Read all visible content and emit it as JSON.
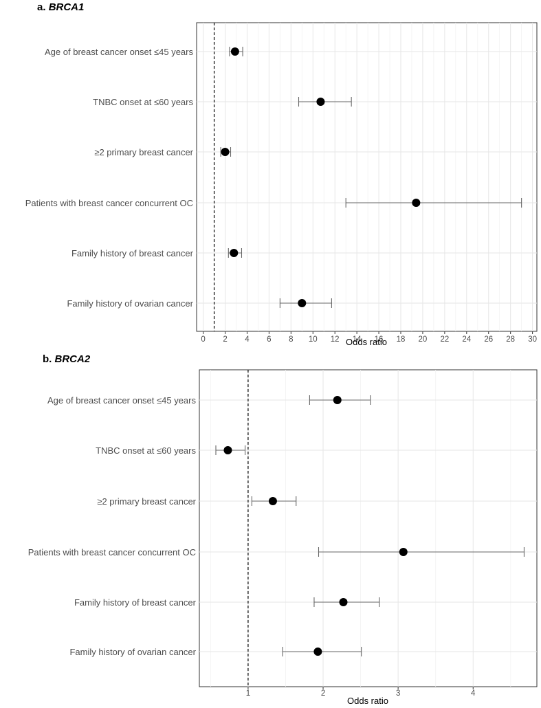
{
  "chart_data": [
    {
      "type": "forest",
      "panel_label": "a.",
      "title": "BRCA1",
      "xlabel": "Odds ratio",
      "xlim": [
        -0.6,
        30.4
      ],
      "xticks": [
        0,
        2,
        4,
        6,
        8,
        10,
        12,
        14,
        16,
        18,
        20,
        22,
        24,
        26,
        28,
        30
      ],
      "reference_line": 1,
      "categories": [
        "Age of breast cancer onset ≤45 years",
        "TNBC onset at ≤60 years",
        "≥2 primary breast cancer",
        "Patients with breast cancer concurrent OC",
        "Family history of breast cancer",
        "Family history of ovarian cancer"
      ],
      "estimates": [
        2.9,
        10.7,
        2.0,
        19.4,
        2.8,
        9.0
      ],
      "ci_lower": [
        2.4,
        8.7,
        1.6,
        13.0,
        2.3,
        7.0
      ],
      "ci_upper": [
        3.6,
        13.5,
        2.5,
        29.0,
        3.5,
        11.7
      ]
    },
    {
      "type": "forest",
      "panel_label": "b.",
      "title": "BRCA2",
      "xlabel": "Odds ratio",
      "xlim": [
        0.35,
        4.85
      ],
      "xticks": [
        1,
        2,
        3,
        4
      ],
      "reference_line": 1,
      "categories": [
        "Age of breast cancer onset ≤45 years",
        "TNBC onset at ≤60 years",
        "≥2 primary breast cancer",
        "Patients with breast cancer concurrent OC",
        "Family history of breast cancer",
        "Family history of ovarian cancer"
      ],
      "estimates": [
        2.19,
        0.73,
        1.33,
        3.07,
        2.27,
        1.93
      ],
      "ci_lower": [
        1.82,
        0.57,
        1.05,
        1.94,
        1.88,
        1.46
      ],
      "ci_upper": [
        2.63,
        0.96,
        1.64,
        4.68,
        2.75,
        2.51
      ]
    }
  ]
}
